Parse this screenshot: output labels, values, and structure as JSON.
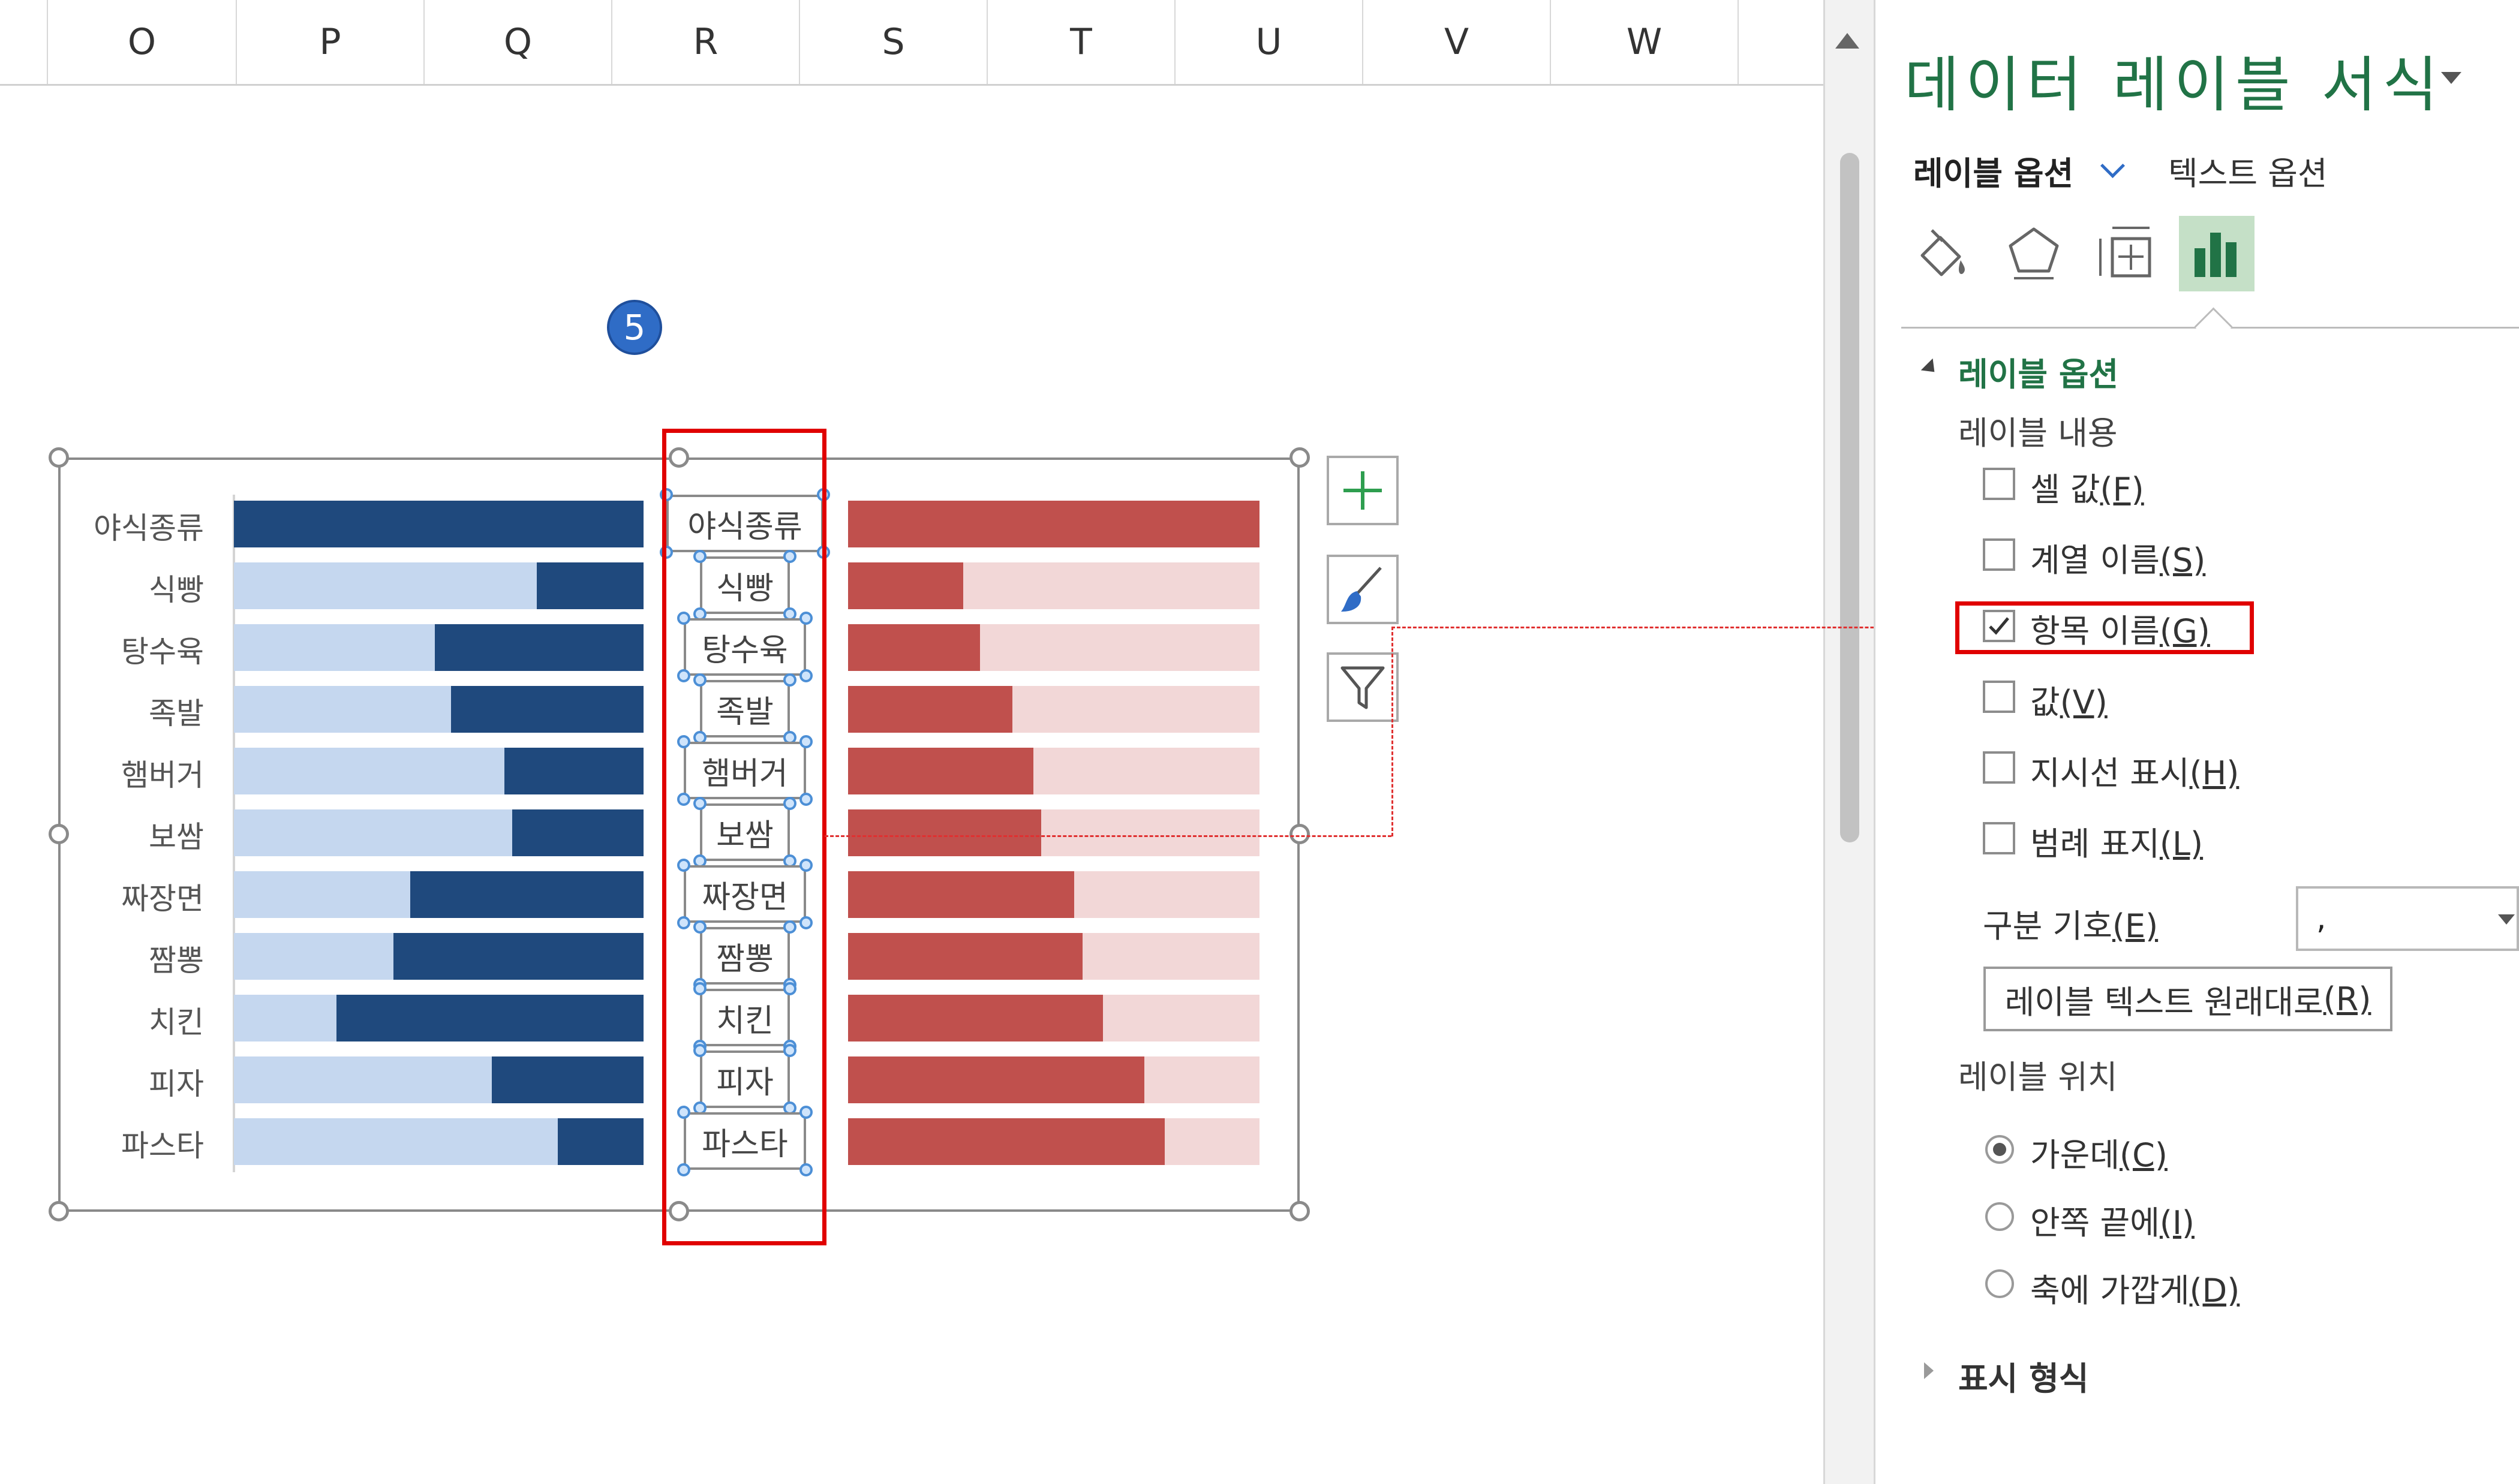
{
  "columns": [
    "O",
    "P",
    "Q",
    "R",
    "S",
    "T",
    "U",
    "V",
    "W"
  ],
  "step_badge": "5",
  "chart": {
    "left_color": "#1f497d",
    "left_light": "#c5d7ef",
    "right_color": "#c0504d",
    "right_light": "#f2d7d7",
    "categories": [
      "야식종류",
      "식빵",
      "탕수육",
      "족발",
      "햄버거",
      "보쌈",
      "짜장면",
      "짬뽕",
      "치킨",
      "피자",
      "파스타"
    ],
    "data_labels": [
      "야식종류",
      "식빵",
      "탕수육",
      "족발",
      "햄버거",
      "보쌈",
      "짜장면",
      "짬뽕",
      "치킨",
      "피자",
      "파스타"
    ]
  },
  "chart_data": {
    "type": "bar",
    "categories": [
      "야식종류",
      "식빵",
      "탕수육",
      "족발",
      "햄버거",
      "보쌈",
      "짜장면",
      "짬뽕",
      "치킨",
      "피자",
      "파스타"
    ],
    "series": [
      {
        "values": [
          100,
          26,
          51,
          47,
          34,
          32,
          57,
          61,
          75,
          37,
          21
        ]
      },
      {
        "values": [
          100,
          28,
          32,
          40,
          45,
          47,
          55,
          57,
          62,
          72,
          77
        ]
      }
    ]
  },
  "tools": {
    "add_icon": "plus-icon",
    "style_icon": "brush-icon",
    "filter_icon": "filter-icon"
  },
  "pane": {
    "title": "데이터 레이블 서식",
    "tab_label_options": "레이블 옵션",
    "tab_text_options": "텍스트 옵션",
    "icons": [
      "fill-line-icon",
      "effects-icon",
      "size-properties-icon",
      "label-options-icon"
    ],
    "section_label_options": "레이블 옵션",
    "label_contents": "레이블 내용",
    "checkboxes": [
      {
        "label": "셀 값",
        "key": "(F)",
        "checked": false
      },
      {
        "label": "계열 이름",
        "key": "(S)",
        "checked": false
      },
      {
        "label": "항목 이름",
        "key": "(G)",
        "checked": true
      },
      {
        "label": "값",
        "key": "(V)",
        "checked": false
      },
      {
        "label": "지시선 표시",
        "key": "(H)",
        "checked": false
      },
      {
        "label": "범례 표지",
        "key": "(L)",
        "checked": false
      }
    ],
    "separator_label": "구분 기호",
    "separator_key": "(E)",
    "separator_value": ",",
    "reset_button": "레이블 텍스트 원래대로",
    "reset_key": "(R)",
    "label_position": "레이블 위치",
    "radios": [
      {
        "label": "가운데",
        "key": "(C)",
        "selected": true
      },
      {
        "label": "안쪽 끝에",
        "key": "(I)",
        "selected": false
      },
      {
        "label": "축에 가깝게",
        "key": "(D)",
        "selected": false
      }
    ],
    "number_format": "표시 형식"
  }
}
